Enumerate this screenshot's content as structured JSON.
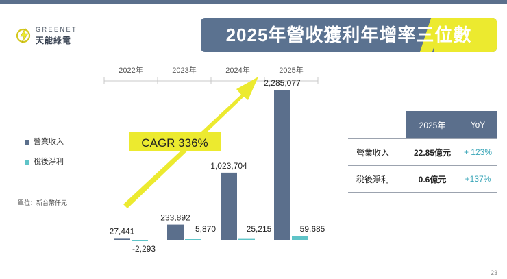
{
  "slide": {
    "title": "2025年營收獲利年增率三位數",
    "page_number": "23",
    "unit_note": "單位：新台幣仟元"
  },
  "logo": {
    "brand": "GREENET",
    "chinese_name": "天能綠電"
  },
  "legend": [
    {
      "label": "營業收入",
      "color": "#5b6f8c"
    },
    {
      "label": "稅後淨利",
      "color": "#5fc4c8"
    }
  ],
  "cagr_label": "CAGR 336%",
  "colors": {
    "revenue": "#5b6f8c",
    "net_income": "#5fc4c8",
    "arrow": "#ecea2f",
    "title_bg": "#5b7290"
  },
  "chart_data": {
    "type": "bar",
    "categories": [
      "2022年",
      "2023年",
      "2024年",
      "2025年"
    ],
    "series": [
      {
        "name": "營業收入",
        "values": [
          27441,
          233892,
          1023704,
          2285077
        ],
        "labels": [
          "27,441",
          "233,892",
          "1,023,704",
          "2,285,077"
        ]
      },
      {
        "name": "稅後淨利",
        "values": [
          -2293,
          5870,
          25215,
          59685
        ],
        "labels": [
          "-2,293",
          "5,870",
          "25,215",
          "59,685"
        ]
      }
    ],
    "annotation": "CAGR 336%",
    "legend_position": "left",
    "grid": false
  },
  "kpi_table": {
    "header": [
      "2025年",
      "YoY"
    ],
    "rows": [
      {
        "label": "營業收入",
        "value": "22.85億元",
        "yoy": "+ 123%"
      },
      {
        "label": "稅後淨利",
        "value": "0.6億元",
        "yoy": "+137%"
      }
    ]
  }
}
